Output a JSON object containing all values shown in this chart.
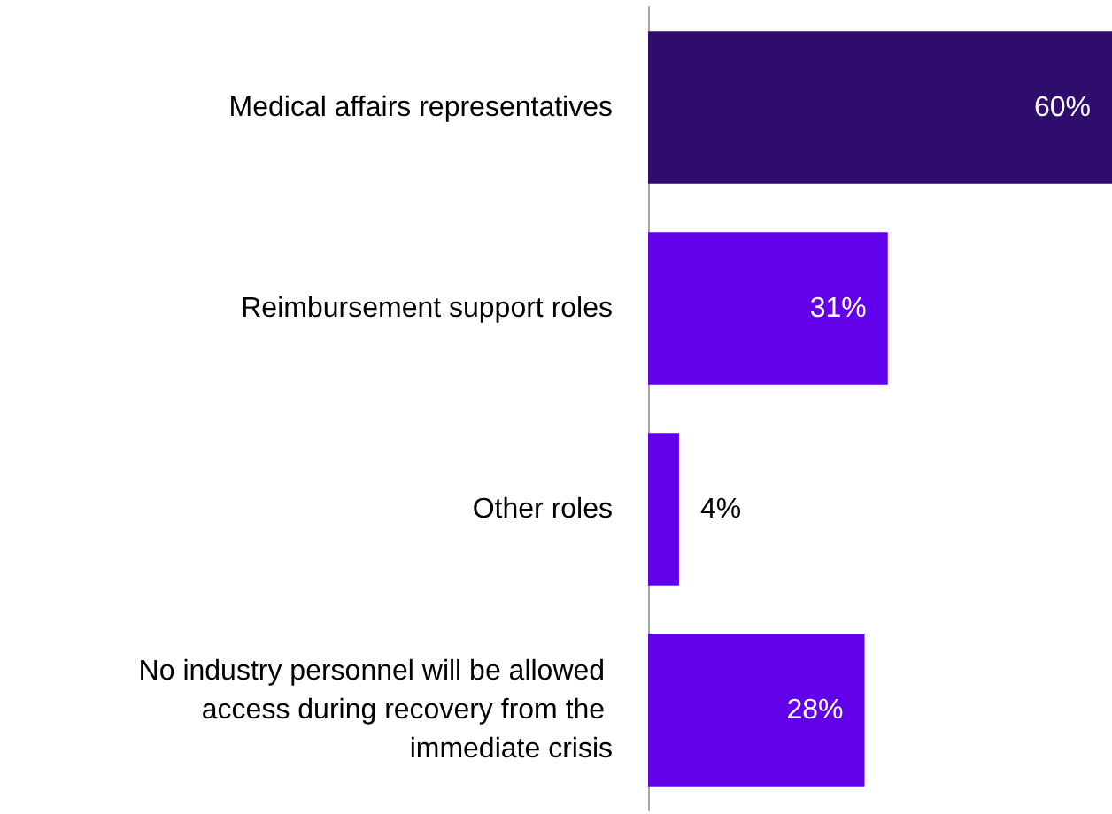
{
  "chart_data": {
    "type": "bar",
    "orientation": "horizontal",
    "categories": [
      "Medical affairs representatives",
      "Reimbursement support roles",
      "Other roles",
      "No industry personnel will be allowed access during recovery from the immediate crisis"
    ],
    "values": [
      60,
      31,
      4,
      28
    ],
    "colors": [
      "#2e0d6c",
      "#6200ea",
      "#6200ea",
      "#6200ea"
    ],
    "value_labels": [
      "60%",
      "31%",
      "4%",
      "28%"
    ],
    "grid": false
  }
}
